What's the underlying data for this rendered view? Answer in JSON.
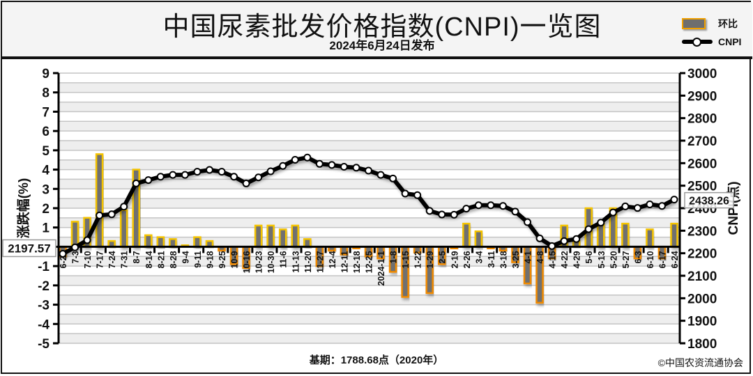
{
  "header": {
    "title": "中国尿素批发价格指数(CNPI)一览图",
    "subtitle": "2024年6月24日发布"
  },
  "legend": {
    "bar_label": "环比",
    "line_label": "CNPI"
  },
  "footer": {
    "base_period": "基期：1788.68点（2020年）",
    "copyright": "©中国农资流通协会"
  },
  "annotations": {
    "start_value": "2197.57",
    "end_value": "2438.26"
  },
  "colors": {
    "bar_fill": "#707070",
    "bar_border_pos": "#f5c400",
    "bar_border_neg": "#f08a00",
    "line": "#000000",
    "marker_fill": "#ffffff",
    "grid_band": "#eeeeee"
  },
  "chart_data": {
    "type": "bar+line",
    "title": "中国尿素批发价格指数(CNPI)一览图",
    "subtitle": "2024年6月24日发布",
    "xlabel": "",
    "ylabel_left": "涨跌幅(%)",
    "ylabel_right": "CNPI(点)",
    "ylim_left": [
      -5,
      9
    ],
    "ylim_right": [
      1800,
      3000
    ],
    "yticks_left": [
      9,
      8,
      7,
      6,
      5,
      4,
      3,
      2,
      1,
      0,
      -1,
      -2,
      -3,
      -4,
      -5
    ],
    "yticks_right": [
      3000,
      2900,
      2800,
      2700,
      2600,
      2500,
      2400,
      2300,
      2200,
      2100,
      2000,
      1900,
      1800
    ],
    "grid": true,
    "legend_position": "top-right",
    "categories": [
      "6-26",
      "7-3",
      "7-10",
      "7-17",
      "7-24",
      "7-31",
      "8-7",
      "8-14",
      "8-21",
      "8-28",
      "9-4",
      "9-11",
      "9-18",
      "9-25",
      "10-9",
      "10-16",
      "10-23",
      "10-30",
      "11-6",
      "11-13",
      "11-20",
      "11-27",
      "12-4",
      "12-11",
      "12-18",
      "12-25",
      "2024-1-1",
      "1-8",
      "1-15",
      "1-22",
      "1-29",
      "2-5",
      "2-19",
      "2-26",
      "3-4",
      "3-11",
      "3-18",
      "3-25",
      "4-1",
      "4-8",
      "4-15",
      "4-22",
      "4-29",
      "5-6",
      "5-13",
      "5-20",
      "5-27",
      "6-3",
      "6-10",
      "6-17",
      "6-24"
    ],
    "series": [
      {
        "name": "环比",
        "type": "bar",
        "axis": "left",
        "values": [
          -0.5,
          1.3,
          1.5,
          4.8,
          0.3,
          1.9,
          4.0,
          0.6,
          0.5,
          0.4,
          0.1,
          0.5,
          0.3,
          -0.2,
          -0.9,
          -1.1,
          1.1,
          1.1,
          0.9,
          1.1,
          0.4,
          -1.0,
          -0.2,
          -0.4,
          -0.1,
          -0.5,
          -0.6,
          -1.3,
          -2.6,
          -0.3,
          -2.4,
          -0.9,
          -0.1,
          1.2,
          0.8,
          -0.1,
          -0.2,
          -0.8,
          -1.9,
          -2.9,
          -0.6,
          1.1,
          0.3,
          2.0,
          1.2,
          2.0,
          1.2,
          -0.6,
          0.9,
          -0.6,
          1.2
        ]
      },
      {
        "name": "CNPI",
        "type": "line",
        "axis": "right",
        "values": [
          2197.57,
          2226,
          2258,
          2368,
          2373,
          2407,
          2510,
          2525,
          2540,
          2548,
          2548,
          2562,
          2570,
          2562,
          2540,
          2510,
          2537,
          2564,
          2588,
          2615,
          2625,
          2597,
          2592,
          2584,
          2580,
          2567,
          2548,
          2532,
          2465,
          2458,
          2388,
          2372,
          2371,
          2398,
          2413,
          2413,
          2410,
          2385,
          2338,
          2266,
          2232,
          2254,
          2263,
          2307,
          2336,
          2381,
          2408,
          2401,
          2417,
          2410,
          2438.26
        ]
      }
    ],
    "annotations": [
      "2197.57",
      "2438.26",
      "基期：1788.68点（2020年）"
    ]
  }
}
